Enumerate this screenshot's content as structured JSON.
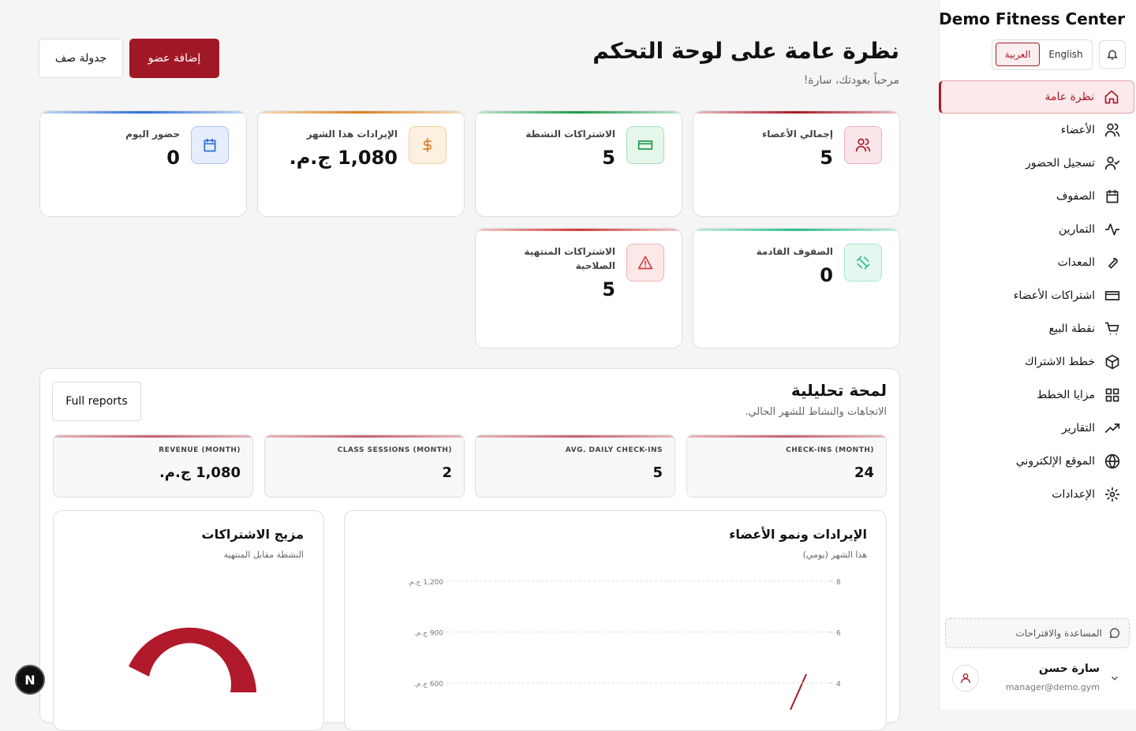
{
  "sidebar": {
    "brand": "Demo Fitness Center",
    "languages": [
      "العربية",
      "English"
    ],
    "nav": [
      "نظرة عامة",
      "الأعضاء",
      "تسجيل الحضور",
      "الصفوف",
      "التمارين",
      "المعدات",
      "اشتراكات الأعضاء",
      "نقطة البيع",
      "خطط الاشتراك",
      "مزايا الخطط",
      "التقارير",
      "الموقع الإلكتروني",
      "الإعدادات"
    ],
    "help": "المساعدة والاقتراحات",
    "user": {
      "name": "سارة حسن",
      "email": "manager@demo.gym"
    }
  },
  "header": {
    "title": "نظرة عامة على لوحة التحكم",
    "subtitle": "مرحباً بعودتك، سارة!",
    "buttons": [
      "إضافة عضو",
      "جدولة صف"
    ]
  },
  "stats": [
    {
      "label": "إجمالي الأعضاء",
      "value": "5"
    },
    {
      "label": "الاشتراكات النشطة",
      "value": "5"
    },
    {
      "label": "الإيرادات هذا الشهر",
      "value": "1,080 ج.م."
    },
    {
      "label": "حضور اليوم",
      "value": "0"
    },
    {
      "label": "الصفوف القادمة",
      "value": "0"
    },
    {
      "label": "الاشتراكات المنتهية الصلاحية",
      "value": "5"
    }
  ],
  "analytics": {
    "title": "لمحة تحليلية",
    "subtitle": "الاتجاهات والنشاط للشهر الحالي.",
    "button": "Full reports",
    "kpis": [
      {
        "label": "CHECK-INS (MONTH)",
        "value": "24"
      },
      {
        "label": "AVG. DAILY CHECK-INS",
        "value": "5"
      },
      {
        "label": "CLASS SESSIONS (MONTH)",
        "value": "2"
      },
      {
        "label": "REVENUE (MONTH)",
        "value": "1,080 ج.م."
      }
    ]
  },
  "revenue_chart": {
    "title": "الإيرادات ونمو الأعضاء",
    "subtitle": "هذا الشهر (يومي)",
    "yticks": [
      {
        "value": 1200,
        "label": "1,200 ج.م."
      },
      {
        "value": 900,
        "label": "900 ج.م."
      },
      {
        "value": 600,
        "label": "600 ج.م."
      }
    ],
    "y2ticks": [
      8,
      6,
      4
    ]
  },
  "mix_chart": {
    "title": "مزيج الاشتراكات",
    "subtitle": "النشطة مقابل المنتهية"
  }
}
